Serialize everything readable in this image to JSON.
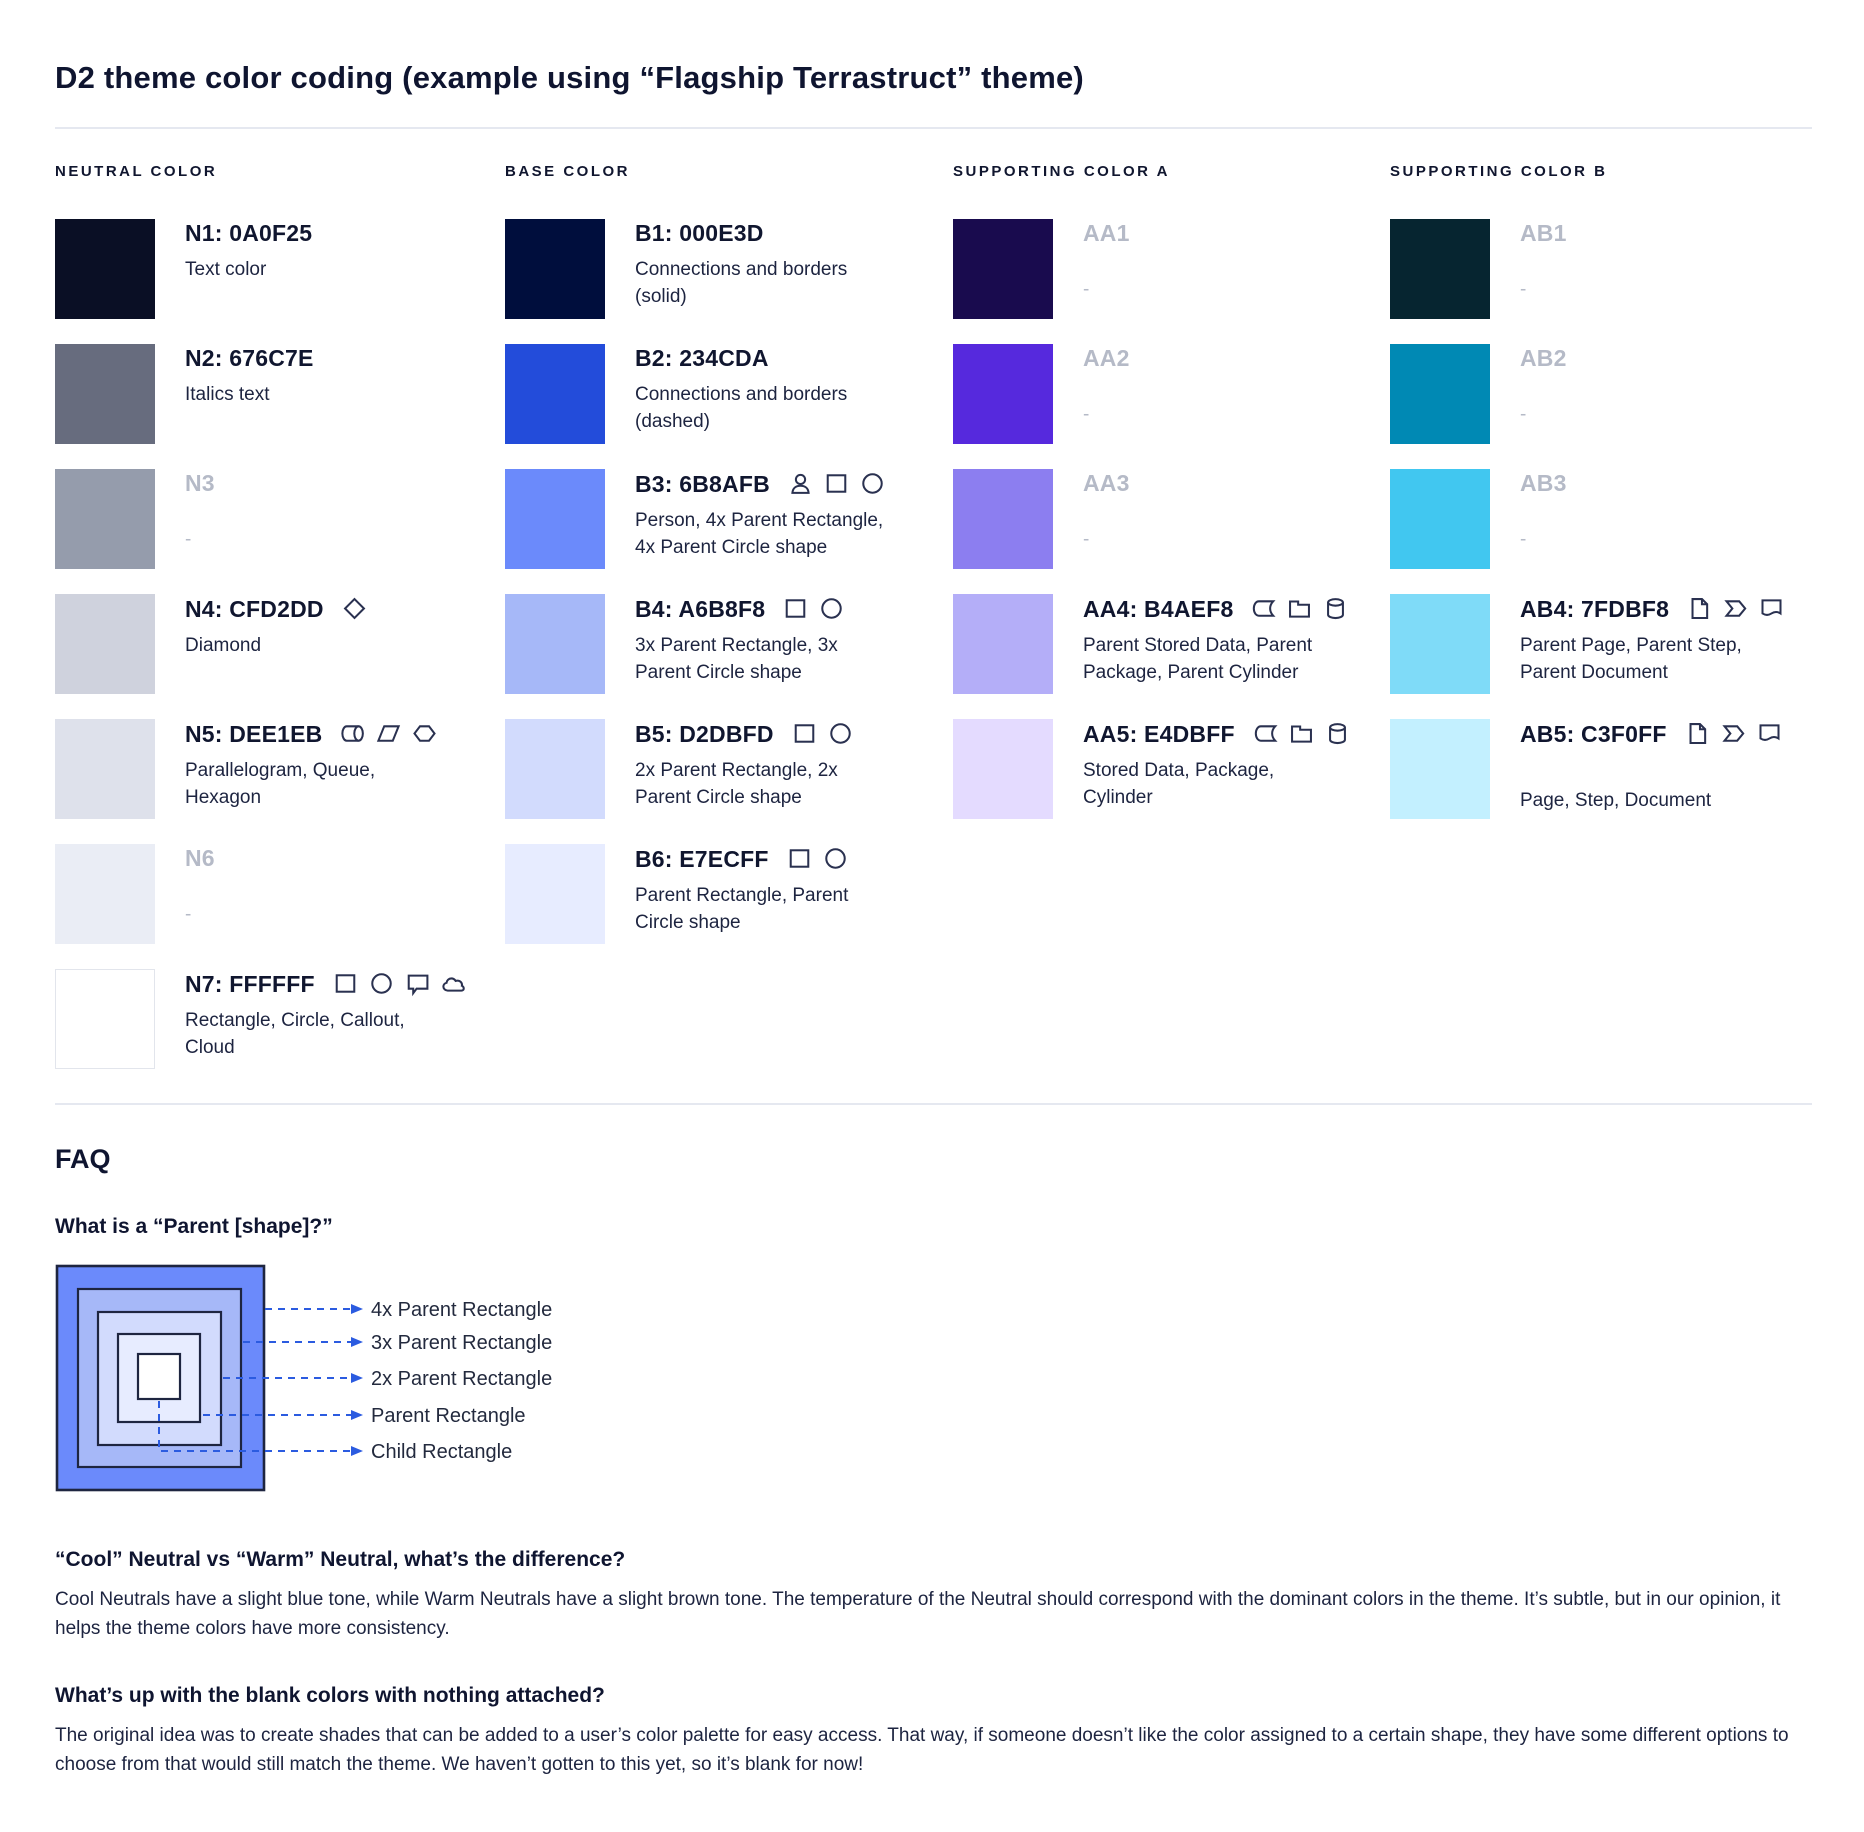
{
  "page": {
    "title": "D2 theme color coding (example using “Flagship Terrastruct” theme)"
  },
  "colors": {
    "heading_text": "#0F1530",
    "body_text": "#1D2440",
    "muted_text": "#B5BAC7",
    "divider": "#E5E8F0",
    "icon_stroke": "#2A3150"
  },
  "palette": {
    "columns": [
      {
        "header": "NEUTRAL COLOR",
        "rows": [
          {
            "label": "N1: 0A0F25",
            "swatch": "#0A0F25",
            "desc": "Text color",
            "icons": []
          },
          {
            "label": "N2: 676C7E",
            "swatch": "#676C7E",
            "desc": "Italics text",
            "icons": []
          },
          {
            "label": "N3",
            "swatch": "#959CAC",
            "desc": "-",
            "icons": [],
            "muted": true
          },
          {
            "label": "N4: CFD2DD",
            "swatch": "#CFD2DD",
            "desc": "Diamond",
            "icons": [
              "diamond"
            ]
          },
          {
            "label": "N5: DEE1EB",
            "swatch": "#DEE1EB",
            "desc": "Parallelogram, Queue, Hexagon",
            "icons": [
              "queue",
              "parallelogram",
              "hexagon"
            ]
          },
          {
            "label": "N6",
            "swatch": "#EAEDF5",
            "desc": "-",
            "icons": [],
            "muted": true
          },
          {
            "label": "N7: FFFFFF",
            "swatch": "#FFFFFF",
            "desc": "Rectangle, Circle, Callout, Cloud",
            "icons": [
              "rectangle",
              "circle",
              "callout",
              "cloud"
            ],
            "swatch_border": true
          }
        ]
      },
      {
        "header": "BASE COLOR",
        "rows": [
          {
            "label": "B1: 000E3D",
            "swatch": "#000E3D",
            "desc": "Connections and borders (solid)",
            "icons": []
          },
          {
            "label": "B2: 234CDA",
            "swatch": "#234CDA",
            "desc": "Connections and borders (dashed)",
            "icons": []
          },
          {
            "label": "B3: 6B8AFB",
            "swatch": "#6B8AFB",
            "desc": "Person, 4x Parent Rectangle, 4x Parent Circle shape",
            "icons": [
              "person",
              "rectangle",
              "circle"
            ]
          },
          {
            "label": "B4: A6B8F8",
            "swatch": "#A6B8F8",
            "desc": "3x Parent Rectangle, 3x Parent Circle shape",
            "icons": [
              "rectangle",
              "circle"
            ]
          },
          {
            "label": "B5: D2DBFD",
            "swatch": "#D2DBFD",
            "desc": "2x Parent Rectangle, 2x Parent Circle shape",
            "icons": [
              "rectangle",
              "circle"
            ]
          },
          {
            "label": "B6: E7ECFF",
            "swatch": "#E7ECFF",
            "desc": "Parent Rectangle, Parent Circle shape",
            "icons": [
              "rectangle",
              "circle"
            ]
          }
        ]
      },
      {
        "header": "SUPPORTING COLOR A",
        "rows": [
          {
            "label": "AA1",
            "swatch": "#190B4E",
            "desc": "-",
            "icons": [],
            "muted": true
          },
          {
            "label": "AA2",
            "swatch": "#5629DD",
            "desc": "-",
            "icons": [],
            "muted": true
          },
          {
            "label": "AA3",
            "swatch": "#8C7EF0",
            "desc": "-",
            "icons": [],
            "muted": true
          },
          {
            "label": "AA4: B4AEF8",
            "swatch": "#B4AEF8",
            "desc": "Parent Stored Data, Parent Package,  Parent Cylinder",
            "icons": [
              "stored-data",
              "package",
              "cylinder"
            ]
          },
          {
            "label": "AA5: E4DBFF",
            "swatch": "#E4DBFF",
            "desc": "Stored Data, Package, Cylinder",
            "icons": [
              "stored-data",
              "package",
              "cylinder"
            ]
          }
        ]
      },
      {
        "header": "SUPPORTING COLOR B",
        "rows": [
          {
            "label": "AB1",
            "swatch": "#062530",
            "desc": "-",
            "icons": [],
            "muted": true
          },
          {
            "label": "AB2",
            "swatch": "#0089B4",
            "desc": "-",
            "icons": [],
            "muted": true
          },
          {
            "label": "AB3",
            "swatch": "#41C7F0",
            "desc": "-",
            "icons": [],
            "muted": true
          },
          {
            "label": "AB4: 7FDBF8",
            "swatch": "#7FDBF8",
            "desc": "Parent Page, Parent Step, Parent Document",
            "icons": [
              "page",
              "step",
              "document"
            ]
          },
          {
            "label": "AB5: C3F0FF",
            "swatch": "#C3F0FF",
            "desc": "Page, Step, Document",
            "icons": [
              "page",
              "step",
              "document"
            ],
            "desc_gap": true
          }
        ]
      }
    ]
  },
  "faq": {
    "title": "FAQ",
    "q1": {
      "question": "What is a “Parent [shape]?”"
    },
    "diagram": {
      "labels": [
        "4x Parent Rectangle",
        "3x Parent Rectangle",
        "2x Parent Rectangle",
        "Parent Rectangle",
        "Child Rectangle"
      ],
      "rect_fills": [
        "#6B8AFB",
        "#A6B8F8",
        "#D2DBFD",
        "#E7ECFF",
        "#FFFFFF"
      ],
      "border_color": "#1E2540",
      "arrow_color": "#2B5BE0"
    },
    "q2": {
      "question": "“Cool” Neutral vs “Warm” Neutral, what’s the difference?",
      "answer": "Cool Neutrals have a slight blue tone, while Warm Neutrals have a slight brown tone. The temperature of the Neutral should correspond with the dominant colors in the theme. It’s subtle, but in our opinion, it helps the theme colors have more consistency."
    },
    "q3": {
      "question": "What’s up with the blank colors with nothing attached?",
      "answer": "The original idea was to create shades that can be added to a user’s color palette for easy access. That way, if someone doesn’t like the color assigned to a certain shape, they have some different options to choose from that would still match the theme. We haven’t gotten to this yet, so it’s blank for now!"
    }
  }
}
